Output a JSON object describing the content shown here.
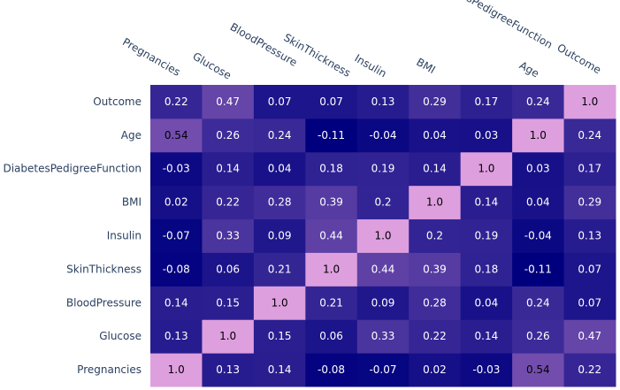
{
  "chart_data": {
    "type": "heatmap",
    "x": [
      "Pregnancies",
      "Glucose",
      "BloodPressure",
      "SkinThickness",
      "Insulin",
      "BMI",
      "DiabetesPedigreeFunction",
      "Age",
      "Outcome"
    ],
    "y": [
      "Pregnancies",
      "Glucose",
      "BloodPressure",
      "SkinThickness",
      "Insulin",
      "BMI",
      "DiabetesPedigreeFunction",
      "Age",
      "Outcome"
    ],
    "z": [
      [
        "1.0",
        "0.13",
        "0.14",
        "-0.08",
        "-0.07",
        "0.02",
        "-0.03",
        "0.54",
        "0.22"
      ],
      [
        "0.13",
        "1.0",
        "0.15",
        "0.06",
        "0.33",
        "0.22",
        "0.14",
        "0.26",
        "0.47"
      ],
      [
        "0.14",
        "0.15",
        "1.0",
        "0.21",
        "0.09",
        "0.28",
        "0.04",
        "0.24",
        "0.07"
      ],
      [
        "-0.08",
        "0.06",
        "0.21",
        "1.0",
        "0.44",
        "0.39",
        "0.18",
        "-0.11",
        "0.07"
      ],
      [
        "-0.07",
        "0.33",
        "0.09",
        "0.44",
        "1.0",
        "0.2",
        "0.19",
        "-0.04",
        "0.13"
      ],
      [
        "0.02",
        "0.22",
        "0.28",
        "0.39",
        "0.2",
        "1.0",
        "0.14",
        "0.04",
        "0.29"
      ],
      [
        "-0.03",
        "0.14",
        "0.04",
        "0.18",
        "0.19",
        "0.14",
        "1.0",
        "0.03",
        "0.17"
      ],
      [
        "0.54",
        "0.26",
        "0.24",
        "-0.11",
        "-0.04",
        "0.04",
        "0.03",
        "1.0",
        "0.24"
      ],
      [
        "0.22",
        "0.47",
        "0.07",
        "0.07",
        "0.13",
        "0.29",
        "0.17",
        "0.24",
        "1.0"
      ]
    ],
    "zrange": [
      -0.11,
      1.0
    ],
    "colorscale": [
      "#00007f",
      "#3c2b98",
      "#8458b5",
      "#de9fde"
    ],
    "text_colors": {
      "dark_bg": "#ffffff",
      "light_bg": "#000000"
    },
    "y_order": "bottom-to-top",
    "x_tick_angle": 30,
    "showscale": false
  }
}
